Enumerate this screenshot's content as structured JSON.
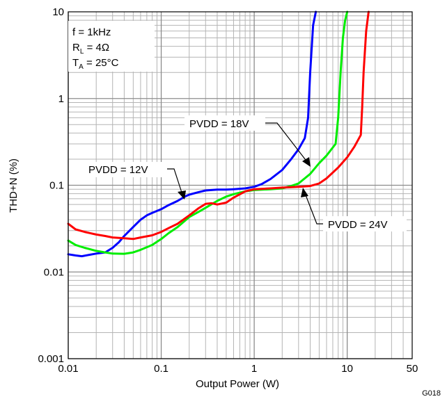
{
  "figure_id": "G018",
  "chart_data": {
    "type": "line",
    "xlabel": "Output Power (W)",
    "ylabel": "THD+N (%)",
    "xscale": "log",
    "yscale": "log",
    "xlim": [
      0.01,
      50
    ],
    "ylim": [
      0.001,
      10
    ],
    "xticks": [
      {
        "value": 0.01,
        "label": "0.01"
      },
      {
        "value": 0.1,
        "label": "0.1"
      },
      {
        "value": 1,
        "label": "1"
      },
      {
        "value": 10,
        "label": "10"
      },
      {
        "value": 50,
        "label": "50"
      }
    ],
    "yticks": [
      {
        "value": 0.001,
        "label": "0.001"
      },
      {
        "value": 0.01,
        "label": "0.01"
      },
      {
        "value": 0.1,
        "label": "0.1"
      },
      {
        "value": 1,
        "label": "1"
      },
      {
        "value": 10,
        "label": "10"
      }
    ],
    "grid": true,
    "conditions": {
      "freq": "f = 1kHz",
      "rl_main": "R",
      "rl_sub": "L",
      "rl_val": " = 4Ω",
      "ta_main": "T",
      "ta_sub": "A",
      "ta_val": " = 25°C"
    },
    "series": [
      {
        "color": "#0000ff",
        "x": [
          0.01,
          0.012,
          0.014,
          0.017,
          0.02,
          0.025,
          0.03,
          0.035,
          0.04,
          0.05,
          0.06,
          0.07,
          0.08,
          0.1,
          0.12,
          0.15,
          0.18,
          0.2,
          0.25,
          0.3,
          0.4,
          0.5,
          0.6,
          0.8,
          1.0,
          1.2,
          1.5,
          2.0,
          2.5,
          3.0,
          3.5,
          3.8,
          4.0,
          4.3,
          4.6
        ],
        "y": [
          0.016,
          0.0155,
          0.0152,
          0.0158,
          0.0163,
          0.0168,
          0.019,
          0.022,
          0.026,
          0.033,
          0.04,
          0.045,
          0.048,
          0.053,
          0.059,
          0.066,
          0.074,
          0.078,
          0.083,
          0.087,
          0.089,
          0.089,
          0.09,
          0.092,
          0.096,
          0.103,
          0.118,
          0.15,
          0.2,
          0.26,
          0.35,
          0.6,
          2.0,
          7.0,
          10.0
        ]
      },
      {
        "color": "#00ee00",
        "x": [
          0.01,
          0.012,
          0.015,
          0.02,
          0.025,
          0.03,
          0.04,
          0.05,
          0.06,
          0.08,
          0.1,
          0.12,
          0.15,
          0.2,
          0.25,
          0.3,
          0.4,
          0.5,
          0.6,
          0.8,
          1.0,
          1.5,
          2.0,
          2.5,
          3.0,
          4.0,
          5.0,
          6.0,
          7.5,
          8.0,
          8.5,
          9.0,
          9.5,
          10.0
        ],
        "y": [
          0.023,
          0.0205,
          0.019,
          0.0175,
          0.0168,
          0.0163,
          0.0162,
          0.0168,
          0.018,
          0.0205,
          0.024,
          0.028,
          0.033,
          0.043,
          0.049,
          0.055,
          0.066,
          0.074,
          0.079,
          0.085,
          0.088,
          0.09,
          0.092,
          0.098,
          0.105,
          0.135,
          0.18,
          0.22,
          0.3,
          0.6,
          2.0,
          5.0,
          8.0,
          10.0
        ]
      },
      {
        "color": "#ff0000",
        "x": [
          0.01,
          0.012,
          0.015,
          0.02,
          0.025,
          0.03,
          0.04,
          0.05,
          0.06,
          0.08,
          0.1,
          0.12,
          0.15,
          0.2,
          0.25,
          0.3,
          0.35,
          0.4,
          0.5,
          0.6,
          0.8,
          1.0,
          1.5,
          2.0,
          3.0,
          4.0,
          5.0,
          6.0,
          8.0,
          10.0,
          12.0,
          14.0,
          14.5,
          15.0,
          16.0,
          17.0
        ],
        "y": [
          0.036,
          0.031,
          0.029,
          0.027,
          0.026,
          0.025,
          0.0245,
          0.024,
          0.025,
          0.0265,
          0.029,
          0.032,
          0.036,
          0.045,
          0.054,
          0.061,
          0.062,
          0.06,
          0.063,
          0.072,
          0.085,
          0.09,
          0.092,
          0.094,
          0.096,
          0.098,
          0.105,
          0.12,
          0.16,
          0.21,
          0.28,
          0.38,
          0.8,
          2.0,
          6.0,
          10.0
        ]
      }
    ],
    "annotations": [
      {
        "text": "PVDD = 18V",
        "series": 1
      },
      {
        "text": "PVDD = 12V",
        "series": 0
      },
      {
        "text": "PVDD = 24V",
        "series": 2
      }
    ]
  }
}
